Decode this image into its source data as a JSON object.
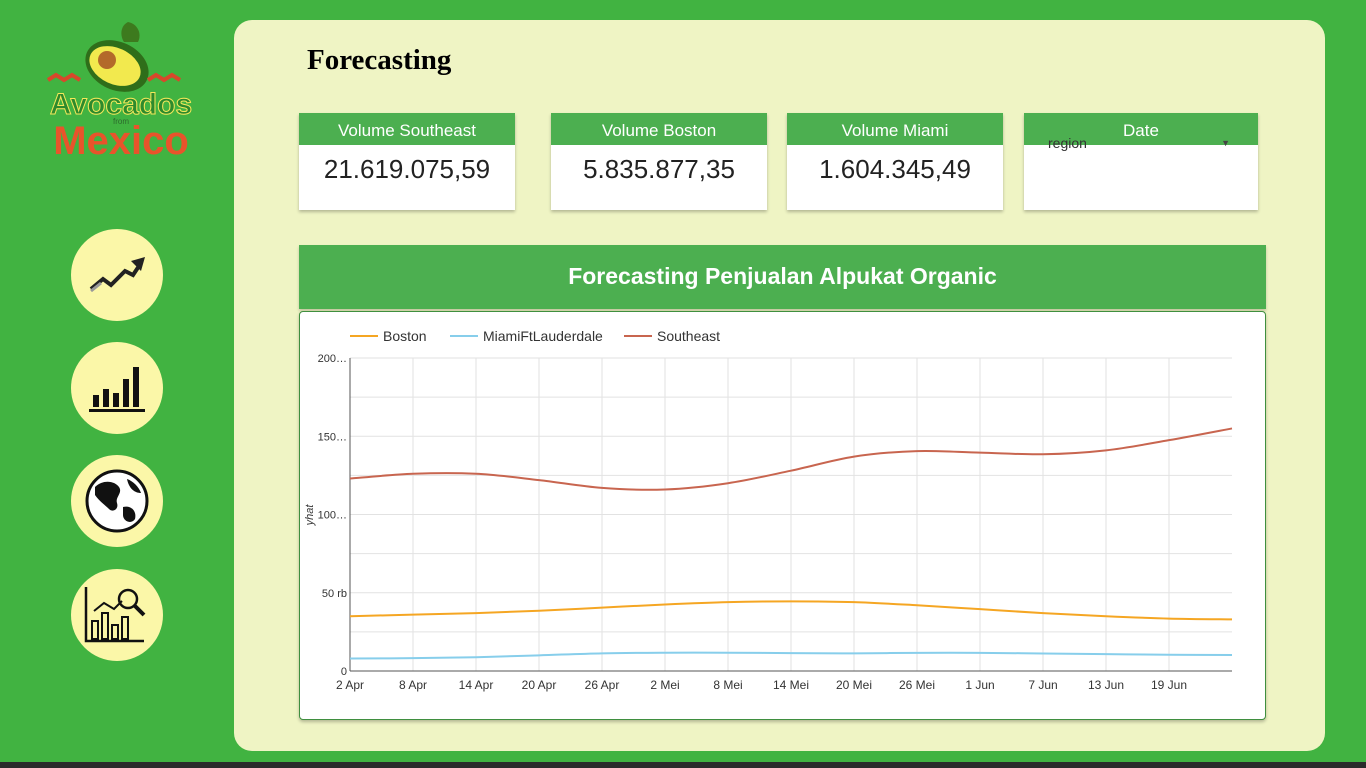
{
  "logo": {
    "line1": "Avocados",
    "small": "from",
    "line2": "Mexico"
  },
  "nav": [
    {
      "name": "nav-trend-button",
      "icon": "trend-arrow-icon"
    },
    {
      "name": "nav-bar-chart-button",
      "icon": "bar-chart-icon"
    },
    {
      "name": "nav-globe-button",
      "icon": "globe-icon"
    },
    {
      "name": "nav-analytics-button",
      "icon": "analytics-magnifier-icon"
    }
  ],
  "page": {
    "title": "Forecasting"
  },
  "scorecards": [
    {
      "label": "Volume Southeast",
      "value": "21.619.075,59"
    },
    {
      "label": "Volume Boston",
      "value": "5.835.877,35"
    },
    {
      "label": "Volume Miami",
      "value": "1.604.345,49"
    }
  ],
  "date_filter": {
    "label": "Date",
    "selected": "region"
  },
  "chart_panel": {
    "title": "Forecasting Penjualan Alpukat Organic"
  },
  "colors": {
    "sidebar_bg": "#41b341",
    "panel_bg": "#eff4c4",
    "header_green": "#4caf50",
    "nav_circle": "#fbf7a8",
    "boston": "#f5a623",
    "miami": "#87ceeb",
    "southeast": "#c8654f"
  },
  "chart_data": {
    "type": "line",
    "title": "Forecasting Penjualan Alpukat Organic",
    "xlabel": "",
    "ylabel": "yhat",
    "x_ticks": [
      "2 Apr",
      "8 Apr",
      "14 Apr",
      "20 Apr",
      "26 Apr",
      "2 Mei",
      "8 Mei",
      "14 Mei",
      "20 Mei",
      "26 Mei",
      "1 Jun",
      "7 Jun",
      "13 Jun",
      "19 Jun"
    ],
    "y_ticks": [
      {
        "value": 0,
        "label": "0"
      },
      {
        "value": 50000,
        "label": "50 rb"
      },
      {
        "value": 100000,
        "label": "100…"
      },
      {
        "value": 150000,
        "label": "150…"
      },
      {
        "value": 200000,
        "label": "200…"
      }
    ],
    "ylim": [
      0,
      200000
    ],
    "grid": true,
    "legend_position": "top-left",
    "x_days": [
      0,
      6,
      12,
      18,
      24,
      30,
      36,
      42,
      48,
      54,
      60,
      66,
      72,
      78,
      84
    ],
    "series": [
      {
        "name": "Boston",
        "color": "#f5a623",
        "values": [
          35000,
          36000,
          37000,
          38500,
          40500,
          42500,
          44000,
          44500,
          44000,
          42000,
          39500,
          37000,
          35000,
          33500,
          33000
        ]
      },
      {
        "name": "MiamiFtLauderdale",
        "color": "#87ceeb",
        "values": [
          8000,
          8200,
          8800,
          10000,
          11300,
          11700,
          11700,
          11400,
          11300,
          11600,
          11600,
          11200,
          10800,
          10400,
          10200
        ]
      },
      {
        "name": "Southeast",
        "color": "#c8654f",
        "values": [
          123000,
          126000,
          126000,
          122000,
          117000,
          116000,
          120000,
          128000,
          137000,
          140500,
          139500,
          138500,
          141000,
          147500,
          155000
        ]
      }
    ]
  }
}
